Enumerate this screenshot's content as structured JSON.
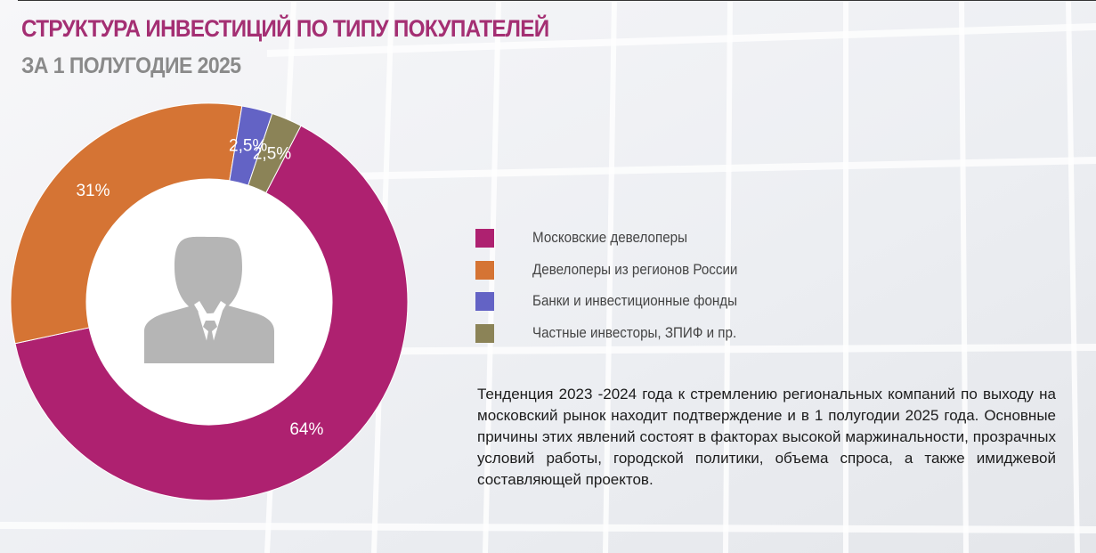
{
  "header": {
    "title": "СТРУКТУРА ИНВЕСТИЦИЙ ПО ТИПУ ПОКУПАТЕЛЕЙ",
    "subtitle": "ЗА 1 ПОЛУГОДИЕ 2025"
  },
  "colors": {
    "title": "#a42f73",
    "subtitle": "#8a8a8a",
    "icon": "#b5b5b5"
  },
  "center_icon": "businessman-avatar-icon",
  "chart_data": {
    "type": "pie",
    "variant": "donut",
    "title": "СТРУКТУРА ИНВЕСТИЦИЙ ПО ТИПУ ПОКУПАТЕЛЕЙ",
    "subtitle": "ЗА 1 ПОЛУГОДИЕ 2025",
    "unit": "%",
    "legend_position": "right",
    "slices": [
      {
        "name": "Московские девелоперы",
        "value": 64,
        "label": "64%",
        "color": "#ae2170"
      },
      {
        "name": "Девелоперы из регионов России",
        "value": 31,
        "label": "31%",
        "color": "#d57434"
      },
      {
        "name": "Банки и инвестиционные фонды",
        "value": 2.5,
        "label": "2,5%",
        "color": "#6363c5"
      },
      {
        "name": "Частные инвесторы, ЗПИФ и пр.",
        "value": 2.5,
        "label": "2,5%",
        "color": "#8b8357"
      }
    ]
  },
  "description": "Тенденция 2023 -2024 года к стремлению региональных компаний по выходу на московский рынок находит подтверждение и в 1 полугодии 2025 года. Основные причины этих явлений состоят в факторах высокой маржинальности, прозрачных условий работы, городской политики, объема спроса, а также имиджевой составляющей проектов."
}
